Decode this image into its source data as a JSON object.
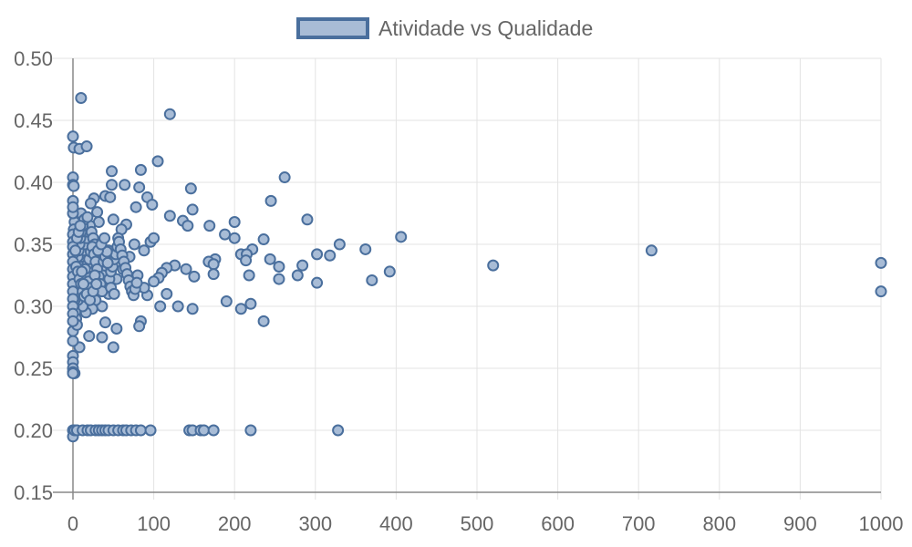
{
  "chart_data": {
    "type": "scatter",
    "legend": {
      "label": "Atividade vs Qualidade",
      "placement": "top-center"
    },
    "x_axis": {
      "min": 0,
      "max": 1000,
      "ticks": [
        "0",
        "100",
        "200",
        "300",
        "400",
        "500",
        "600",
        "700",
        "800",
        "900",
        "1000"
      ]
    },
    "y_axis": {
      "min": 0.15,
      "max": 0.5,
      "ticks": [
        "0.15",
        "0.20",
        "0.25",
        "0.30",
        "0.35",
        "0.40",
        "0.45",
        "0.50"
      ]
    },
    "grid": true,
    "colors": {
      "marker_fill": "#a8bcd6",
      "marker_stroke": "#4a6f9d",
      "grid": "#e3e3e3",
      "axis": "#888888"
    },
    "series": [
      {
        "name": "Atividade vs Qualidade",
        "points": [
          [
            10,
            0.468
          ],
          [
            120,
            0.455
          ],
          [
            0,
            0.437
          ],
          [
            1,
            0.428
          ],
          [
            8,
            0.427
          ],
          [
            17,
            0.429
          ],
          [
            105,
            0.417
          ],
          [
            48,
            0.409
          ],
          [
            84,
            0.41
          ],
          [
            0,
            0.404
          ],
          [
            262,
            0.404
          ],
          [
            146,
            0.395
          ],
          [
            64,
            0.398
          ],
          [
            82,
            0.396
          ],
          [
            48,
            0.398
          ],
          [
            0,
            0.398
          ],
          [
            1,
            0.397
          ],
          [
            26,
            0.387
          ],
          [
            40,
            0.389
          ],
          [
            46,
            0.388
          ],
          [
            92,
            0.388
          ],
          [
            245,
            0.385
          ],
          [
            22,
            0.383
          ],
          [
            98,
            0.382
          ],
          [
            0,
            0.385
          ],
          [
            78,
            0.38
          ],
          [
            30,
            0.376
          ],
          [
            148,
            0.378
          ],
          [
            10,
            0.375
          ],
          [
            120,
            0.373
          ],
          [
            290,
            0.37
          ],
          [
            136,
            0.369
          ],
          [
            200,
            0.368
          ],
          [
            169,
            0.365
          ],
          [
            66,
            0.366
          ],
          [
            50,
            0.37
          ],
          [
            32,
            0.368
          ],
          [
            142,
            0.365
          ],
          [
            188,
            0.358
          ],
          [
            200,
            0.355
          ],
          [
            236,
            0.354
          ],
          [
            406,
            0.356
          ],
          [
            330,
            0.35
          ],
          [
            362,
            0.346
          ],
          [
            222,
            0.346
          ],
          [
            208,
            0.342
          ],
          [
            215,
            0.342
          ],
          [
            302,
            0.342
          ],
          [
            318,
            0.341
          ],
          [
            176,
            0.338
          ],
          [
            244,
            0.338
          ],
          [
            214,
            0.337
          ],
          [
            168,
            0.336
          ],
          [
            174,
            0.334
          ],
          [
            255,
            0.332
          ],
          [
            284,
            0.333
          ],
          [
            392,
            0.328
          ],
          [
            278,
            0.325
          ],
          [
            218,
            0.325
          ],
          [
            174,
            0.326
          ],
          [
            150,
            0.324
          ],
          [
            255,
            0.322
          ],
          [
            370,
            0.321
          ],
          [
            302,
            0.319
          ],
          [
            140,
            0.33
          ],
          [
            126,
            0.333
          ],
          [
            116,
            0.331
          ],
          [
            110,
            0.327
          ],
          [
            106,
            0.323
          ],
          [
            100,
            0.32
          ],
          [
            116,
            0.31
          ],
          [
            92,
            0.309
          ],
          [
            108,
            0.3
          ],
          [
            130,
            0.3
          ],
          [
            148,
            0.298
          ],
          [
            190,
            0.304
          ],
          [
            220,
            0.302
          ],
          [
            208,
            0.298
          ],
          [
            236,
            0.288
          ],
          [
            84,
            0.288
          ],
          [
            82,
            0.284
          ],
          [
            40,
            0.287
          ],
          [
            54,
            0.282
          ],
          [
            36,
            0.275
          ],
          [
            20,
            0.276
          ],
          [
            50,
            0.267
          ],
          [
            8,
            0.267
          ],
          [
            0,
            0.28
          ],
          [
            0,
            0.272
          ],
          [
            0,
            0.26
          ],
          [
            0,
            0.255
          ],
          [
            0,
            0.25
          ],
          [
            0,
            0.247
          ],
          [
            2,
            0.246
          ],
          [
            0,
            0.246
          ],
          [
            520,
            0.333
          ],
          [
            716,
            0.345
          ],
          [
            1000,
            0.335
          ],
          [
            1000,
            0.312
          ],
          [
            96,
            0.352
          ],
          [
            100,
            0.355
          ],
          [
            88,
            0.345
          ],
          [
            76,
            0.35
          ],
          [
            60,
            0.362
          ],
          [
            70,
            0.34
          ],
          [
            56,
            0.355
          ],
          [
            44,
            0.345
          ],
          [
            62,
            0.33
          ],
          [
            80,
            0.325
          ],
          [
            88,
            0.315
          ],
          [
            72,
            0.318
          ],
          [
            54,
            0.322
          ],
          [
            44,
            0.31
          ],
          [
            36,
            0.3
          ],
          [
            28,
            0.305
          ],
          [
            24,
            0.298
          ],
          [
            16,
            0.295
          ],
          [
            12,
            0.3
          ],
          [
            6,
            0.305
          ],
          [
            4,
            0.31
          ],
          [
            2,
            0.315
          ],
          [
            3,
            0.32
          ],
          [
            5,
            0.325
          ],
          [
            7,
            0.33
          ],
          [
            9,
            0.335
          ],
          [
            11,
            0.34
          ],
          [
            13,
            0.345
          ],
          [
            15,
            0.35
          ],
          [
            17,
            0.355
          ],
          [
            19,
            0.36
          ],
          [
            21,
            0.365
          ],
          [
            23,
            0.36
          ],
          [
            25,
            0.355
          ],
          [
            27,
            0.35
          ],
          [
            29,
            0.345
          ],
          [
            31,
            0.34
          ],
          [
            33,
            0.335
          ],
          [
            35,
            0.33
          ],
          [
            37,
            0.325
          ],
          [
            39,
            0.32
          ],
          [
            41,
            0.315
          ],
          [
            43,
            0.318
          ],
          [
            45,
            0.322
          ],
          [
            47,
            0.328
          ],
          [
            49,
            0.332
          ],
          [
            51,
            0.338
          ],
          [
            53,
            0.342
          ],
          [
            55,
            0.348
          ],
          [
            57,
            0.352
          ],
          [
            59,
            0.346
          ],
          [
            61,
            0.341
          ],
          [
            63,
            0.336
          ],
          [
            65,
            0.331
          ],
          [
            67,
            0.326
          ],
          [
            69,
            0.321
          ],
          [
            71,
            0.316
          ],
          [
            73,
            0.312
          ],
          [
            75,
            0.309
          ],
          [
            77,
            0.314
          ],
          [
            79,
            0.319
          ],
          [
            1,
            0.3
          ],
          [
            2,
            0.305
          ],
          [
            3,
            0.295
          ],
          [
            4,
            0.29
          ],
          [
            5,
            0.285
          ],
          [
            6,
            0.34
          ],
          [
            7,
            0.345
          ],
          [
            8,
            0.35
          ],
          [
            9,
            0.355
          ],
          [
            10,
            0.36
          ],
          [
            12,
            0.365
          ],
          [
            14,
            0.37
          ],
          [
            18,
            0.372
          ],
          [
            2,
            0.368
          ],
          [
            1,
            0.362
          ],
          [
            0,
            0.358
          ],
          [
            0,
            0.352
          ],
          [
            0,
            0.348
          ],
          [
            0,
            0.342
          ],
          [
            0,
            0.336
          ],
          [
            0,
            0.33
          ],
          [
            0,
            0.324
          ],
          [
            0,
            0.318
          ],
          [
            0,
            0.312
          ],
          [
            0,
            0.306
          ],
          [
            0,
            0.3
          ],
          [
            0,
            0.294
          ],
          [
            0,
            0.288
          ],
          [
            0,
            0.375
          ],
          [
            0,
            0.38
          ],
          [
            4,
            0.332
          ],
          [
            6,
            0.328
          ],
          [
            8,
            0.322
          ],
          [
            10,
            0.318
          ],
          [
            12,
            0.312
          ],
          [
            14,
            0.308
          ],
          [
            16,
            0.326
          ],
          [
            18,
            0.334
          ],
          [
            20,
            0.338
          ],
          [
            22,
            0.344
          ],
          [
            24,
            0.348
          ],
          [
            26,
            0.342
          ],
          [
            28,
            0.336
          ],
          [
            30,
            0.33
          ],
          [
            32,
            0.324
          ],
          [
            34,
            0.318
          ],
          [
            36,
            0.312
          ],
          [
            38,
            0.336
          ],
          [
            40,
            0.34
          ],
          [
            42,
            0.344
          ],
          [
            15,
            0.33
          ],
          [
            19,
            0.32
          ],
          [
            23,
            0.315
          ],
          [
            27,
            0.325
          ],
          [
            31,
            0.345
          ],
          [
            35,
            0.35
          ],
          [
            39,
            0.355
          ],
          [
            43,
            0.335
          ],
          [
            47,
            0.315
          ],
          [
            51,
            0.31
          ],
          [
            3,
            0.345
          ],
          [
            5,
            0.355
          ],
          [
            7,
            0.36
          ],
          [
            9,
            0.365
          ],
          [
            11,
            0.328
          ],
          [
            13,
            0.318
          ],
          [
            17,
            0.31
          ],
          [
            21,
            0.305
          ],
          [
            25,
            0.312
          ],
          [
            29,
            0.318
          ],
          [
            0,
            0.2
          ],
          [
            0,
            0.195
          ],
          [
            2,
            0.2
          ],
          [
            5,
            0.2
          ],
          [
            12,
            0.2
          ],
          [
            18,
            0.2
          ],
          [
            22,
            0.2
          ],
          [
            28,
            0.2
          ],
          [
            32,
            0.2
          ],
          [
            36,
            0.2
          ],
          [
            40,
            0.2
          ],
          [
            44,
            0.2
          ],
          [
            50,
            0.2
          ],
          [
            56,
            0.2
          ],
          [
            62,
            0.2
          ],
          [
            66,
            0.2
          ],
          [
            72,
            0.2
          ],
          [
            78,
            0.2
          ],
          [
            84,
            0.2
          ],
          [
            96,
            0.2
          ],
          [
            144,
            0.2
          ],
          [
            148,
            0.2
          ],
          [
            158,
            0.2
          ],
          [
            162,
            0.2
          ],
          [
            174,
            0.2
          ],
          [
            220,
            0.2
          ],
          [
            328,
            0.2
          ]
        ]
      }
    ]
  }
}
